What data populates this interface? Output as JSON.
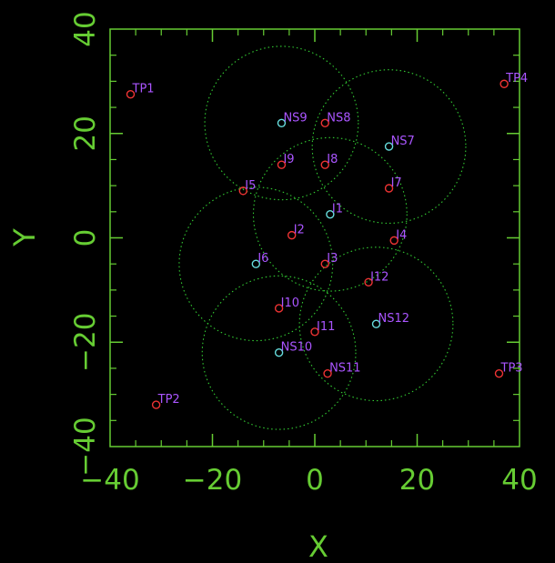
{
  "chart_data": {
    "type": "scatter",
    "title": "",
    "xlabel": "X",
    "ylabel": "Y",
    "xlim": [
      -40,
      40
    ],
    "ylim": [
      -40,
      40
    ],
    "xticks": [
      -40,
      -20,
      0,
      20,
      40
    ],
    "yticks": [
      -40,
      -20,
      0,
      20,
      40
    ],
    "grid": false,
    "colors": {
      "background": "#000000",
      "axes": "#66cc33",
      "circles": "#33cc33",
      "label": "#aa55ff",
      "red_marker": "#ee3333",
      "cyan_marker": "#66dddd"
    },
    "points": [
      {
        "label": "TP1",
        "x": -36,
        "y": 27.5,
        "marker": "red"
      },
      {
        "label": "TP2",
        "x": -31,
        "y": -32,
        "marker": "red"
      },
      {
        "label": "TP3",
        "x": 36,
        "y": -26,
        "marker": "red"
      },
      {
        "label": "TP4",
        "x": 37,
        "y": 29.5,
        "marker": "red"
      },
      {
        "label": "NS9",
        "x": -6.5,
        "y": 22,
        "marker": "cyan"
      },
      {
        "label": "NS8",
        "x": 2,
        "y": 22,
        "marker": "red"
      },
      {
        "label": "NS7",
        "x": 14.5,
        "y": 17.5,
        "marker": "cyan"
      },
      {
        "label": "I9",
        "x": -6.5,
        "y": 14,
        "marker": "red"
      },
      {
        "label": "I8",
        "x": 2,
        "y": 14,
        "marker": "red"
      },
      {
        "label": "I7",
        "x": 14.5,
        "y": 9.5,
        "marker": "red"
      },
      {
        "label": "I5",
        "x": -14,
        "y": 9,
        "marker": "red"
      },
      {
        "label": "I1",
        "x": 3,
        "y": 4.5,
        "marker": "cyan"
      },
      {
        "label": "I2",
        "x": -4.5,
        "y": 0.5,
        "marker": "red"
      },
      {
        "label": "I4",
        "x": 15.5,
        "y": -0.5,
        "marker": "red"
      },
      {
        "label": "I6",
        "x": -11.5,
        "y": -5,
        "marker": "cyan"
      },
      {
        "label": "I3",
        "x": 2,
        "y": -5,
        "marker": "red"
      },
      {
        "label": "I12",
        "x": 10.5,
        "y": -8.5,
        "marker": "red"
      },
      {
        "label": "I10",
        "x": -7,
        "y": -13.5,
        "marker": "red"
      },
      {
        "label": "NS12",
        "x": 12,
        "y": -16.5,
        "marker": "cyan"
      },
      {
        "label": "I11",
        "x": 0,
        "y": -18,
        "marker": "red"
      },
      {
        "label": "NS10",
        "x": -7,
        "y": -22,
        "marker": "cyan"
      },
      {
        "label": "NS11",
        "x": 2.5,
        "y": -26,
        "marker": "red"
      }
    ],
    "circles": [
      {
        "cx": -6.5,
        "cy": 22,
        "r": 15
      },
      {
        "cx": 14.5,
        "cy": 17.5,
        "r": 15
      },
      {
        "cx": 3,
        "cy": 4.5,
        "r": 15
      },
      {
        "cx": -11.5,
        "cy": -5,
        "r": 15
      },
      {
        "cx": 12,
        "cy": -16.5,
        "r": 15
      },
      {
        "cx": -7,
        "cy": -22,
        "r": 15
      }
    ]
  }
}
